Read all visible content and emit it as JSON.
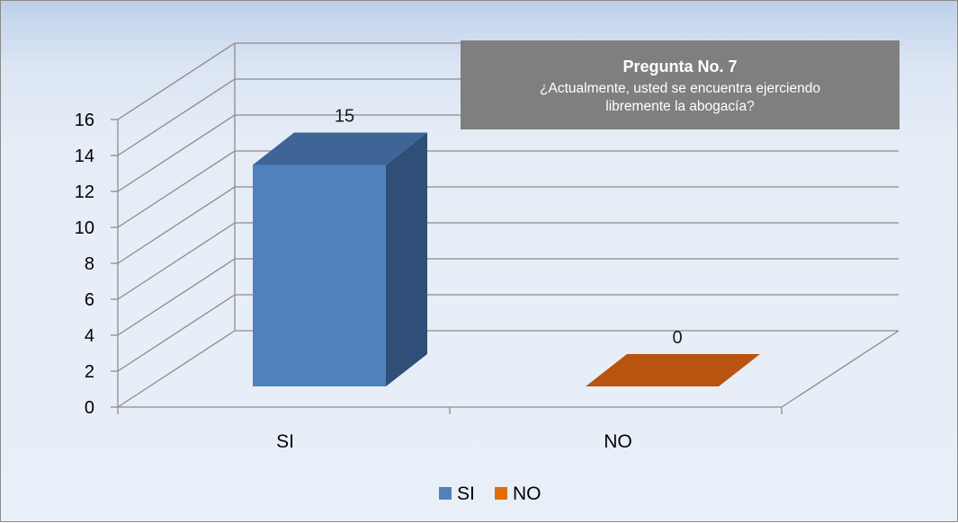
{
  "chart_data": {
    "type": "bar",
    "title": "Pregunta No. 7",
    "subtitle_lines": [
      "¿Actualmente, usted se encuentra ejerciendo",
      "libremente la abogacía?"
    ],
    "categories": [
      "SI",
      "NO"
    ],
    "values": [
      15,
      0
    ],
    "data_labels": [
      "15",
      "0"
    ],
    "y_ticks": [
      "0",
      "2",
      "4",
      "6",
      "8",
      "10",
      "12",
      "14",
      "16"
    ],
    "ylim": [
      0,
      16
    ],
    "legend": [
      {
        "name": "SI",
        "color": "#4f81bd"
      },
      {
        "name": "NO",
        "color": "#c0504d"
      }
    ],
    "legend_position": "bottom",
    "grid": true,
    "three_d": true
  },
  "colors": {
    "si_front": "#4f81bd",
    "si_top": "#3f6496",
    "si_side": "#2f4e78",
    "no_top": "#b85410",
    "title_box": "#7f7f7f",
    "grid": "#8c8c8c"
  }
}
